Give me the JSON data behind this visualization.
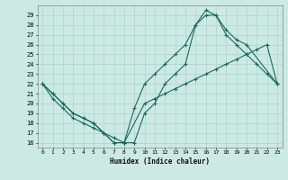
{
  "xlabel": "Humidex (Indice chaleur)",
  "xlim": [
    -0.5,
    23.5
  ],
  "ylim": [
    15.5,
    30
  ],
  "yticks": [
    16,
    17,
    18,
    19,
    20,
    21,
    22,
    23,
    24,
    25,
    26,
    27,
    28,
    29
  ],
  "xticks": [
    0,
    1,
    2,
    3,
    4,
    5,
    6,
    7,
    8,
    9,
    10,
    11,
    12,
    13,
    14,
    15,
    16,
    17,
    18,
    19,
    20,
    21,
    22,
    23
  ],
  "bg_color": "#cce9e4",
  "grid_color": "#b0d8d2",
  "line_color": "#1a6b5a",
  "line1_x": [
    0,
    1,
    2,
    3,
    4,
    5,
    6,
    7,
    8,
    9,
    10,
    11,
    12,
    13,
    14,
    15,
    16,
    17,
    18,
    19,
    20,
    21,
    22,
    23
  ],
  "line1_y": [
    22,
    21,
    20,
    19,
    18.5,
    18,
    17,
    16,
    16,
    19.5,
    22,
    23,
    24,
    25,
    26,
    28,
    29,
    29,
    27,
    26,
    25,
    24,
    23,
    22
  ],
  "line2_x": [
    0,
    1,
    2,
    3,
    4,
    5,
    6,
    7,
    8,
    10,
    11,
    12,
    13,
    14,
    15,
    16,
    17,
    18,
    19,
    20,
    21,
    22,
    23
  ],
  "line2_y": [
    22,
    21,
    20,
    19,
    18.5,
    18,
    17,
    16,
    16,
    20,
    20.5,
    21,
    21.5,
    22,
    22.5,
    23,
    23.5,
    24,
    24.5,
    25,
    25.5,
    26,
    22
  ],
  "line3_x": [
    0,
    1,
    2,
    3,
    4,
    5,
    6,
    7,
    8,
    9,
    10,
    11,
    12,
    13,
    14,
    15,
    16,
    17,
    18,
    19,
    20,
    23
  ],
  "line3_y": [
    22,
    20.5,
    19.5,
    18.5,
    18,
    17.5,
    17,
    16.5,
    16,
    16,
    19,
    20,
    22,
    23,
    24,
    28,
    29.5,
    29,
    27.5,
    26.5,
    26,
    22
  ]
}
